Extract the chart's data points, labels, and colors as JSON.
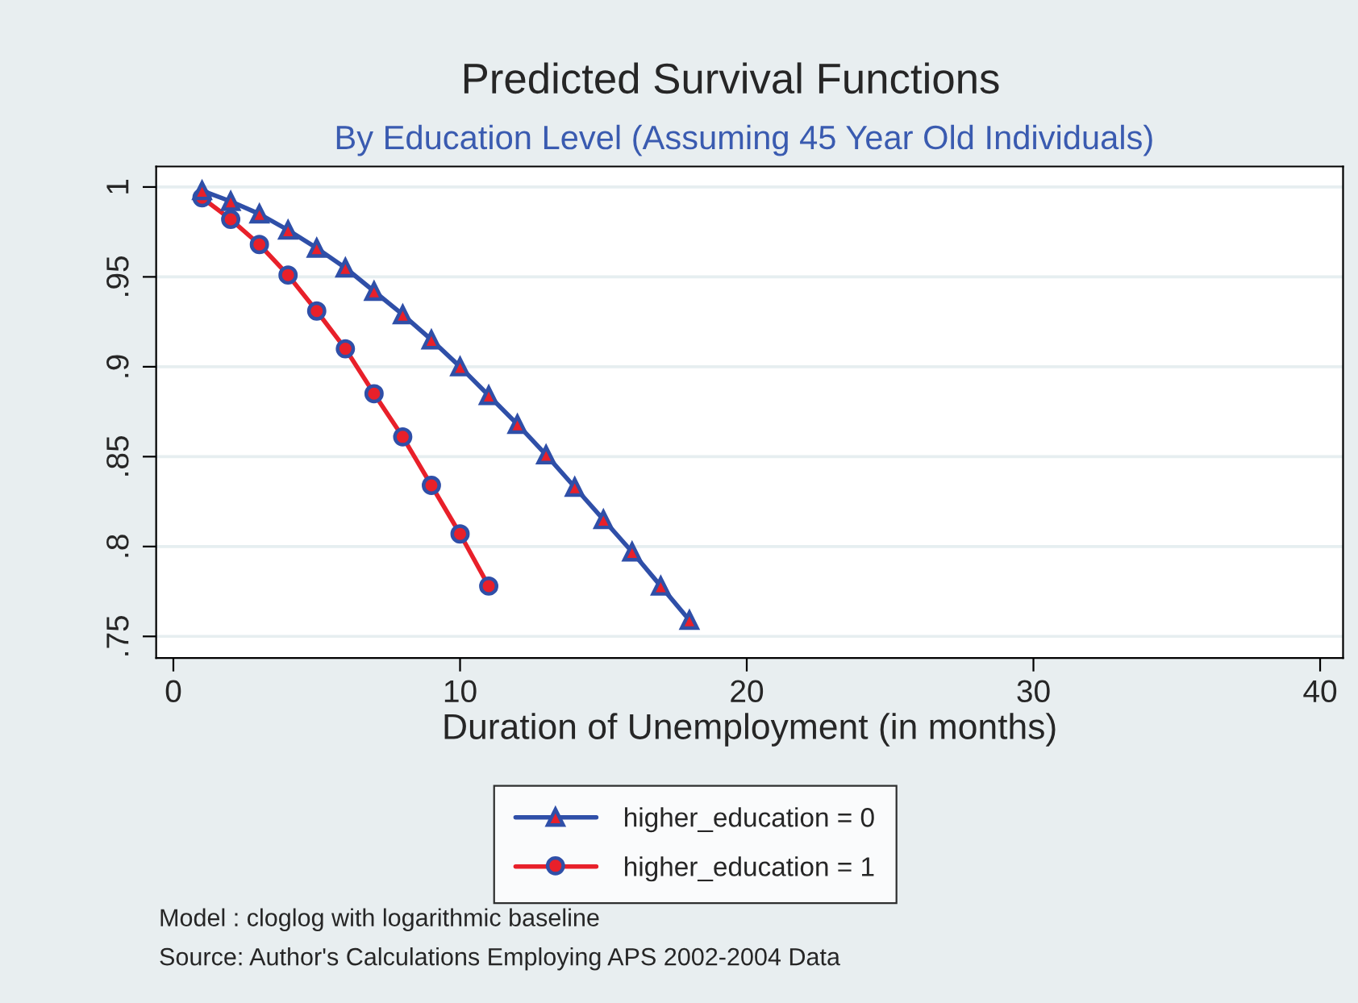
{
  "chart_data": {
    "type": "line",
    "title": "Predicted Survival Functions",
    "subtitle": "By Education Level (Assuming 45 Year Old Individuals)",
    "xlabel": "Duration of Unemployment (in months)",
    "series": [
      {
        "name": "higher_education = 0",
        "color": "#2f4fa8",
        "marker": "triangle",
        "x": [
          1,
          2,
          3,
          4,
          5,
          6,
          7,
          8,
          9,
          10,
          11,
          12,
          13,
          14,
          15,
          16,
          17,
          18
        ],
        "values": [
          0.998,
          0.992,
          0.985,
          0.976,
          0.966,
          0.955,
          0.942,
          0.929,
          0.915,
          0.9,
          0.884,
          0.868,
          0.851,
          0.833,
          0.815,
          0.797,
          0.778,
          0.759
        ]
      },
      {
        "name": "higher_education = 1",
        "color": "#e8202a",
        "marker": "circle",
        "x": [
          1,
          2,
          3,
          4,
          5,
          6,
          7,
          8,
          9,
          10,
          11
        ],
        "values": [
          0.994,
          0.982,
          0.968,
          0.951,
          0.931,
          0.91,
          0.885,
          0.861,
          0.834,
          0.807,
          0.778
        ]
      }
    ],
    "xlim": [
      -0.6,
      40.8
    ],
    "xticks": [
      0,
      10,
      20,
      30,
      40
    ],
    "ylim": [
      0.738,
      1.0114
    ],
    "yticks": [
      {
        "value": 0.75,
        "label": ".75"
      },
      {
        "value": 0.8,
        "label": ".8"
      },
      {
        "value": 0.85,
        "label": ".85"
      },
      {
        "value": 0.9,
        "label": ".9"
      },
      {
        "value": 0.95,
        "label": ".95"
      },
      {
        "value": 1,
        "label": "1"
      }
    ],
    "grid": "y",
    "legend": "bottom",
    "annotations": [
      "Model : cloglog with logarithmic baseline",
      "Source: Author's Calculations Employing APS 2002-2004 Data"
    ]
  }
}
